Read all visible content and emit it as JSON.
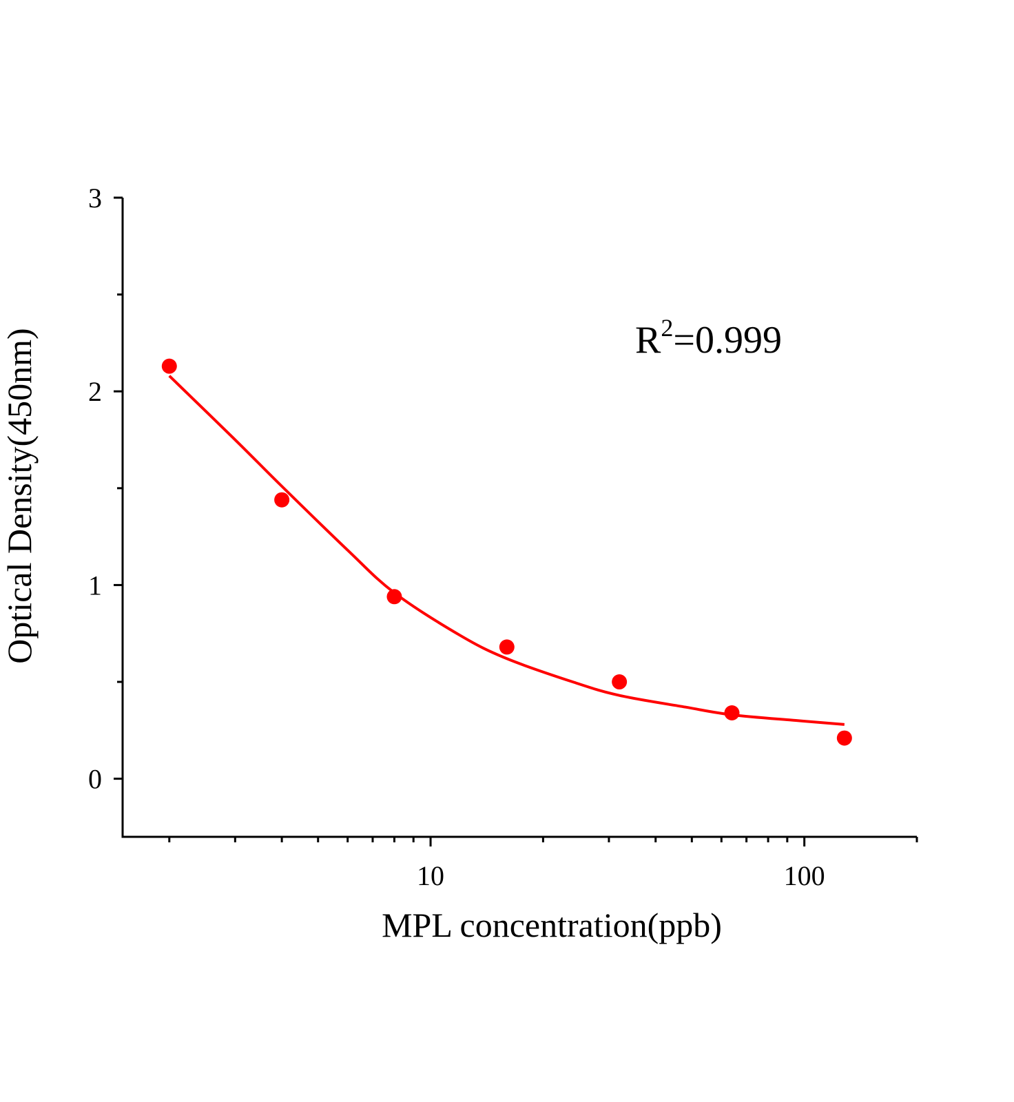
{
  "chart_data": {
    "type": "scatter",
    "title": "",
    "xlabel": "MPL concentration(ppb)",
    "ylabel": "Optical Density(450nm)",
    "x_scale": "log",
    "xlim": [
      1.5,
      200
    ],
    "ylim": [
      -0.3,
      3
    ],
    "x_ticks": [
      {
        "value": 10,
        "label": "10"
      },
      {
        "value": 100,
        "label": "100"
      }
    ],
    "y_ticks": [
      {
        "value": 0,
        "label": "0"
      },
      {
        "value": 1,
        "label": "1"
      },
      {
        "value": 2,
        "label": "2"
      },
      {
        "value": 3,
        "label": "3"
      }
    ],
    "grid": false,
    "color": "#ff0000",
    "points": {
      "x": [
        2,
        4,
        8,
        16,
        32,
        64,
        128
      ],
      "y": [
        2.13,
        1.44,
        0.94,
        0.68,
        0.5,
        0.34,
        0.21
      ]
    },
    "fit_curve": {
      "x": [
        2,
        3,
        4,
        6,
        8,
        12,
        16,
        24,
        32,
        48,
        64,
        96,
        128
      ],
      "y": [
        2.08,
        1.75,
        1.51,
        1.18,
        0.96,
        0.74,
        0.62,
        0.5,
        0.43,
        0.37,
        0.33,
        0.3,
        0.28
      ]
    },
    "annotation": {
      "base": "R",
      "sup": "2",
      "rest": "=0.999"
    }
  }
}
